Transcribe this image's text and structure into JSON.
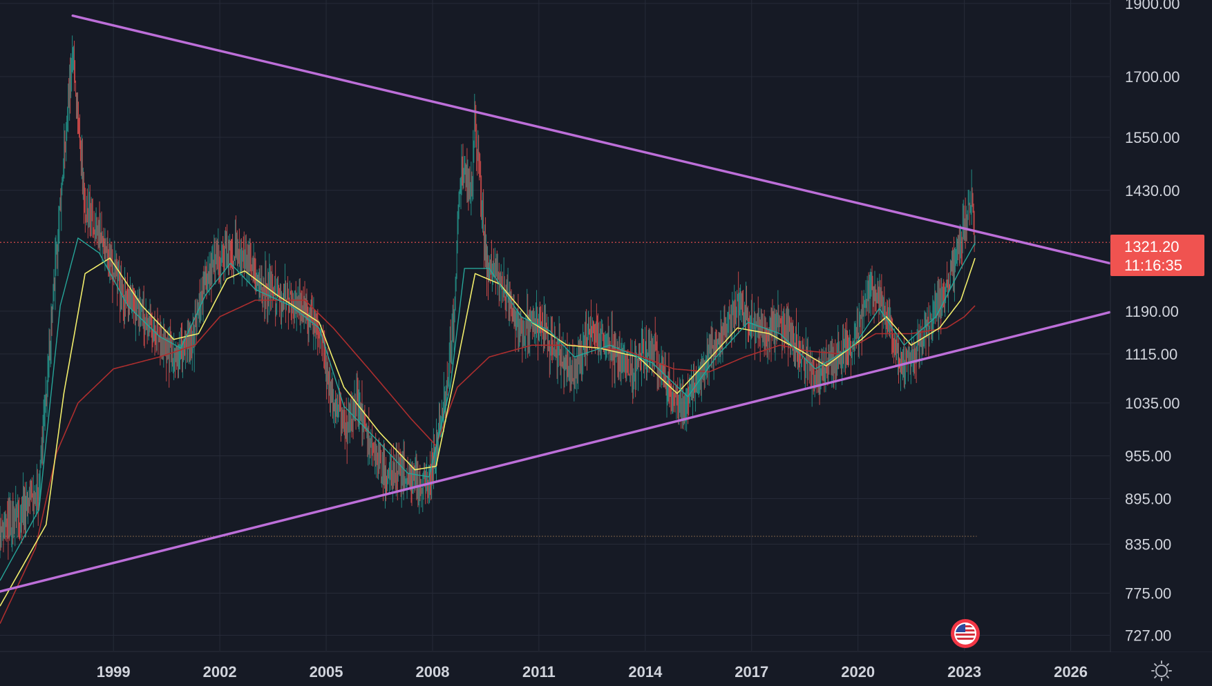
{
  "chart_data": {
    "type": "candlestick",
    "y_scale": "log",
    "ylim": [
      710,
      1910
    ],
    "xlim": [
      1995.8,
      2027.1
    ],
    "y_ticks": [
      1900.0,
      1700.0,
      1550.0,
      1430.0,
      1190.0,
      1115.0,
      1035.0,
      955.0,
      895.0,
      835.0,
      775.0,
      727.0
    ],
    "y_tick_labels": [
      "1900.00",
      "1700.00",
      "1550.00",
      "1430.00",
      "1190.00",
      "1115.00",
      "1035.00",
      "955.00",
      "895.00",
      "835.00",
      "775.00",
      "727.00"
    ],
    "x_ticks": [
      1999,
      2002,
      2005,
      2008,
      2011,
      2014,
      2017,
      2020,
      2023,
      2026
    ],
    "x_tick_labels": [
      "1999",
      "2002",
      "2005",
      "2008",
      "2011",
      "2014",
      "2017",
      "2020",
      "2023",
      "2026"
    ],
    "grid": true,
    "current_price": {
      "value": 1321.2,
      "label": "1321.20",
      "countdown": "11:16:35",
      "color": "#f05350"
    },
    "horizontal_level": {
      "value": 845
    },
    "price_anchors": [
      {
        "x": 1995.8,
        "y": 845
      },
      {
        "x": 1996.4,
        "y": 880
      },
      {
        "x": 1996.9,
        "y": 910
      },
      {
        "x": 1997.6,
        "y": 1500
      },
      {
        "x": 1997.85,
        "y": 1780
      },
      {
        "x": 1998.2,
        "y": 1380
      },
      {
        "x": 1998.7,
        "y": 1330
      },
      {
        "x": 1999.3,
        "y": 1220
      },
      {
        "x": 2000.0,
        "y": 1170
      },
      {
        "x": 2000.6,
        "y": 1115
      },
      {
        "x": 2001.2,
        "y": 1130
      },
      {
        "x": 2001.6,
        "y": 1260
      },
      {
        "x": 2002.0,
        "y": 1290
      },
      {
        "x": 2002.5,
        "y": 1310
      },
      {
        "x": 2003.0,
        "y": 1250
      },
      {
        "x": 2003.6,
        "y": 1220
      },
      {
        "x": 2004.3,
        "y": 1195
      },
      {
        "x": 2004.8,
        "y": 1160
      },
      {
        "x": 2005.2,
        "y": 1030
      },
      {
        "x": 2005.6,
        "y": 1000
      },
      {
        "x": 2005.9,
        "y": 1040
      },
      {
        "x": 2006.2,
        "y": 975
      },
      {
        "x": 2006.6,
        "y": 930
      },
      {
        "x": 2007.1,
        "y": 935
      },
      {
        "x": 2007.6,
        "y": 915
      },
      {
        "x": 2007.9,
        "y": 920
      },
      {
        "x": 2008.3,
        "y": 1020
      },
      {
        "x": 2008.6,
        "y": 1180
      },
      {
        "x": 2008.8,
        "y": 1490
      },
      {
        "x": 2009.1,
        "y": 1420
      },
      {
        "x": 2009.2,
        "y": 1600
      },
      {
        "x": 2009.5,
        "y": 1290
      },
      {
        "x": 2010.0,
        "y": 1230
      },
      {
        "x": 2010.5,
        "y": 1150
      },
      {
        "x": 2011.0,
        "y": 1170
      },
      {
        "x": 2011.6,
        "y": 1110
      },
      {
        "x": 2012.0,
        "y": 1080
      },
      {
        "x": 2012.4,
        "y": 1160
      },
      {
        "x": 2013.0,
        "y": 1130
      },
      {
        "x": 2013.6,
        "y": 1090
      },
      {
        "x": 2014.2,
        "y": 1125
      },
      {
        "x": 2014.7,
        "y": 1055
      },
      {
        "x": 2015.1,
        "y": 1025
      },
      {
        "x": 2015.6,
        "y": 1095
      },
      {
        "x": 2016.2,
        "y": 1150
      },
      {
        "x": 2016.6,
        "y": 1210
      },
      {
        "x": 2016.9,
        "y": 1175
      },
      {
        "x": 2017.4,
        "y": 1150
      },
      {
        "x": 2017.8,
        "y": 1165
      },
      {
        "x": 2018.3,
        "y": 1130
      },
      {
        "x": 2018.8,
        "y": 1075
      },
      {
        "x": 2019.3,
        "y": 1105
      },
      {
        "x": 2019.9,
        "y": 1135
      },
      {
        "x": 2020.2,
        "y": 1200
      },
      {
        "x": 2020.4,
        "y": 1230
      },
      {
        "x": 2020.9,
        "y": 1170
      },
      {
        "x": 2021.2,
        "y": 1095
      },
      {
        "x": 2021.6,
        "y": 1120
      },
      {
        "x": 2022.0,
        "y": 1165
      },
      {
        "x": 2022.5,
        "y": 1230
      },
      {
        "x": 2022.9,
        "y": 1330
      },
      {
        "x": 2023.2,
        "y": 1420
      },
      {
        "x": 2023.3,
        "y": 1321.2
      }
    ],
    "ema_fast": [
      {
        "x": 1995.8,
        "y": 790
      },
      {
        "x": 1996.9,
        "y": 880
      },
      {
        "x": 1997.5,
        "y": 1200
      },
      {
        "x": 1998.0,
        "y": 1330
      },
      {
        "x": 1998.6,
        "y": 1300
      },
      {
        "x": 1999.4,
        "y": 1200
      },
      {
        "x": 2000.3,
        "y": 1145
      },
      {
        "x": 2000.9,
        "y": 1125
      },
      {
        "x": 2001.6,
        "y": 1220
      },
      {
        "x": 2002.3,
        "y": 1280
      },
      {
        "x": 2003.0,
        "y": 1230
      },
      {
        "x": 2004.0,
        "y": 1200
      },
      {
        "x": 2004.8,
        "y": 1160
      },
      {
        "x": 2005.5,
        "y": 1030
      },
      {
        "x": 2006.4,
        "y": 980
      },
      {
        "x": 2007.3,
        "y": 930
      },
      {
        "x": 2007.9,
        "y": 925
      },
      {
        "x": 2008.5,
        "y": 1060
      },
      {
        "x": 2008.9,
        "y": 1270
      },
      {
        "x": 2009.6,
        "y": 1270
      },
      {
        "x": 2010.5,
        "y": 1180
      },
      {
        "x": 2011.3,
        "y": 1155
      },
      {
        "x": 2012.0,
        "y": 1110
      },
      {
        "x": 2013.0,
        "y": 1130
      },
      {
        "x": 2014.2,
        "y": 1100
      },
      {
        "x": 2015.2,
        "y": 1045
      },
      {
        "x": 2016.0,
        "y": 1110
      },
      {
        "x": 2016.9,
        "y": 1170
      },
      {
        "x": 2017.8,
        "y": 1150
      },
      {
        "x": 2018.8,
        "y": 1090
      },
      {
        "x": 2019.9,
        "y": 1130
      },
      {
        "x": 2020.6,
        "y": 1195
      },
      {
        "x": 2021.3,
        "y": 1130
      },
      {
        "x": 2022.2,
        "y": 1180
      },
      {
        "x": 2022.9,
        "y": 1270
      },
      {
        "x": 2023.3,
        "y": 1320
      }
    ],
    "ema_mid": [
      {
        "x": 1995.8,
        "y": 760
      },
      {
        "x": 1997.1,
        "y": 860
      },
      {
        "x": 1997.6,
        "y": 1050
      },
      {
        "x": 1998.2,
        "y": 1260
      },
      {
        "x": 1998.9,
        "y": 1290
      },
      {
        "x": 1999.8,
        "y": 1200
      },
      {
        "x": 2000.7,
        "y": 1140
      },
      {
        "x": 2001.4,
        "y": 1150
      },
      {
        "x": 2002.2,
        "y": 1250
      },
      {
        "x": 2002.7,
        "y": 1265
      },
      {
        "x": 2003.6,
        "y": 1220
      },
      {
        "x": 2004.8,
        "y": 1170
      },
      {
        "x": 2005.5,
        "y": 1060
      },
      {
        "x": 2006.5,
        "y": 990
      },
      {
        "x": 2007.5,
        "y": 935
      },
      {
        "x": 2008.1,
        "y": 940
      },
      {
        "x": 2008.7,
        "y": 1100
      },
      {
        "x": 2009.2,
        "y": 1260
      },
      {
        "x": 2009.9,
        "y": 1240
      },
      {
        "x": 2010.8,
        "y": 1170
      },
      {
        "x": 2011.8,
        "y": 1130
      },
      {
        "x": 2012.7,
        "y": 1125
      },
      {
        "x": 2013.8,
        "y": 1110
      },
      {
        "x": 2014.9,
        "y": 1050
      },
      {
        "x": 2015.7,
        "y": 1100
      },
      {
        "x": 2016.6,
        "y": 1160
      },
      {
        "x": 2017.5,
        "y": 1150
      },
      {
        "x": 2018.4,
        "y": 1120
      },
      {
        "x": 2019.1,
        "y": 1095
      },
      {
        "x": 2020.1,
        "y": 1140
      },
      {
        "x": 2020.8,
        "y": 1180
      },
      {
        "x": 2021.5,
        "y": 1130
      },
      {
        "x": 2022.3,
        "y": 1160
      },
      {
        "x": 2022.9,
        "y": 1210
      },
      {
        "x": 2023.3,
        "y": 1290
      }
    ],
    "sma_slow": [
      {
        "x": 1995.8,
        "y": 740
      },
      {
        "x": 1996.8,
        "y": 830
      },
      {
        "x": 1997.4,
        "y": 960
      },
      {
        "x": 1998.0,
        "y": 1035
      },
      {
        "x": 1999.0,
        "y": 1090
      },
      {
        "x": 2000.3,
        "y": 1110
      },
      {
        "x": 2001.3,
        "y": 1130
      },
      {
        "x": 2002.0,
        "y": 1180
      },
      {
        "x": 2003.0,
        "y": 1210
      },
      {
        "x": 2004.4,
        "y": 1210
      },
      {
        "x": 2005.2,
        "y": 1160
      },
      {
        "x": 2006.2,
        "y": 1090
      },
      {
        "x": 2007.4,
        "y": 1010
      },
      {
        "x": 2008.1,
        "y": 970
      },
      {
        "x": 2008.7,
        "y": 1060
      },
      {
        "x": 2009.6,
        "y": 1110
      },
      {
        "x": 2010.8,
        "y": 1130
      },
      {
        "x": 2012.0,
        "y": 1130
      },
      {
        "x": 2013.5,
        "y": 1120
      },
      {
        "x": 2014.8,
        "y": 1090
      },
      {
        "x": 2015.8,
        "y": 1085
      },
      {
        "x": 2016.8,
        "y": 1110
      },
      {
        "x": 2017.8,
        "y": 1130
      },
      {
        "x": 2018.6,
        "y": 1120
      },
      {
        "x": 2019.5,
        "y": 1115
      },
      {
        "x": 2020.5,
        "y": 1150
      },
      {
        "x": 2021.5,
        "y": 1150
      },
      {
        "x": 2022.5,
        "y": 1160
      },
      {
        "x": 2023.0,
        "y": 1180
      },
      {
        "x": 2023.3,
        "y": 1200
      }
    ],
    "trendlines": [
      {
        "name": "upper",
        "x1": 1997.85,
        "y1": 1865,
        "x2": 2027.1,
        "y2": 1280
      },
      {
        "name": "lower",
        "x1": 1995.8,
        "y1": 777,
        "x2": 2027.1,
        "y2": 1188
      }
    ],
    "colors": {
      "background": "#161a25",
      "grid": "#262b38",
      "axis_text": "#d1d4dc",
      "trendline": "#bd6fd9",
      "ema_fast": "#26a69a",
      "ema_mid": "#f2ee6b",
      "sma_slow": "#ad2e2e",
      "candle_up": "#26a69a",
      "candle_down": "#ef5350",
      "price_badge": "#f05350"
    },
    "icons": {
      "flag": "us-flag-icon",
      "settings": "gear-icon"
    }
  }
}
